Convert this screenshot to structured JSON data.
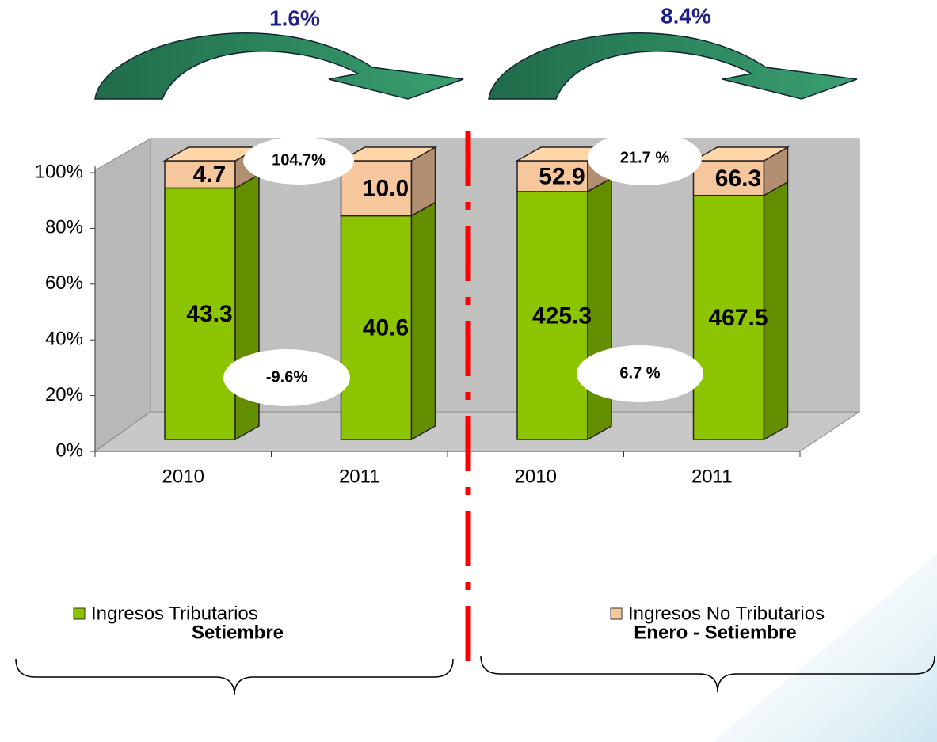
{
  "chart_data": {
    "type": "bar",
    "stacking": "percent",
    "categories": [
      "2010",
      "2011",
      "2010",
      "2011"
    ],
    "series": [
      {
        "name": "Ingresos Tributarios",
        "color": "#8cc400",
        "values": [
          43.3,
          40.6,
          425.3,
          467.5
        ]
      },
      {
        "name": "Ingresos No Tributarios",
        "color": "#f6c69c",
        "values": [
          4.7,
          10.0,
          52.9,
          66.3
        ],
        "value_labels": [
          "4.7",
          "10.0",
          "52.9",
          "66.3"
        ]
      }
    ],
    "ylim": [
      0,
      100
    ],
    "yticks": [
      {
        "value": 0,
        "label": "0%"
      },
      {
        "value": 20,
        "label": "20%"
      },
      {
        "value": 40,
        "label": "40%"
      },
      {
        "value": 60,
        "label": "60%"
      },
      {
        "value": 80,
        "label": "80%"
      },
      {
        "value": 100,
        "label": "100%"
      }
    ],
    "growth_labels": [
      "1.6%",
      "8.4%"
    ],
    "annotations": [
      "104.7%",
      "-9.6%",
      "21.7 %",
      "6.7 %"
    ],
    "groups": [
      "Setiembre",
      "Enero - Setiembre"
    ]
  }
}
